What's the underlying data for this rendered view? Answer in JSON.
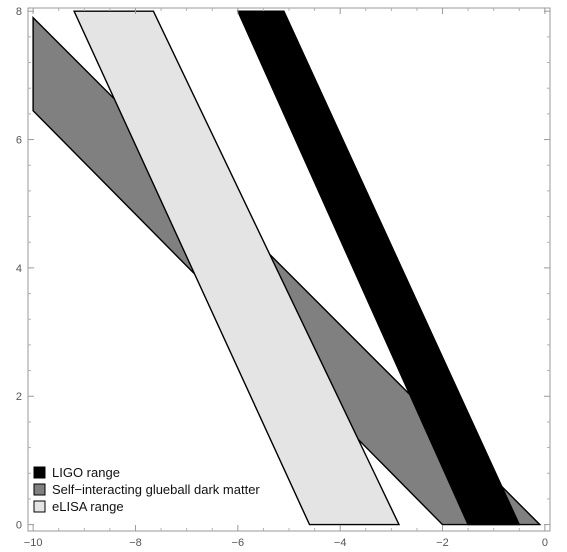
{
  "chart_data": {
    "type": "area",
    "title": "",
    "xlabel": "",
    "ylabel": "",
    "xlim": [
      -10.1,
      0.1
    ],
    "ylim": [
      -0.1,
      8.05
    ],
    "x_ticks": [
      -10,
      -8,
      -6,
      -4,
      -2,
      0
    ],
    "y_ticks": [
      0,
      2,
      4,
      6,
      8
    ],
    "x_tick_labels": [
      "−10",
      "−8",
      "−6",
      "−4",
      "−2",
      "0"
    ],
    "y_tick_labels": [
      "0",
      "2",
      "4",
      "6",
      "8"
    ],
    "grid": false,
    "frame": "full box with ticks on all four sides, labels on bottom and left",
    "legend_position": "bottom-left",
    "series": [
      {
        "name": "Self−interacting glueball dark matter",
        "color": "#808080",
        "polygon": [
          [
            -10,
            7.9
          ],
          [
            -0.1,
            0
          ],
          [
            -2,
            0
          ],
          [
            -10,
            6.45
          ]
        ]
      },
      {
        "name": "eLISA range",
        "color": "#e4e4e4",
        "polygon": [
          [
            -9.2,
            8
          ],
          [
            -7.65,
            8
          ],
          [
            -2.85,
            0
          ],
          [
            -4.6,
            0
          ]
        ]
      },
      {
        "name": "LIGO range",
        "color": "#000000",
        "polygon": [
          [
            -6,
            8
          ],
          [
            -5.1,
            8
          ],
          [
            -0.5,
            0
          ],
          [
            -1.5,
            0
          ]
        ]
      }
    ],
    "legend": [
      {
        "label": "LIGO range",
        "color": "#000000"
      },
      {
        "label": "Self−interacting glueball dark matter",
        "color": "#808080"
      },
      {
        "label": "eLISA range",
        "color": "#e4e4e4"
      }
    ]
  }
}
